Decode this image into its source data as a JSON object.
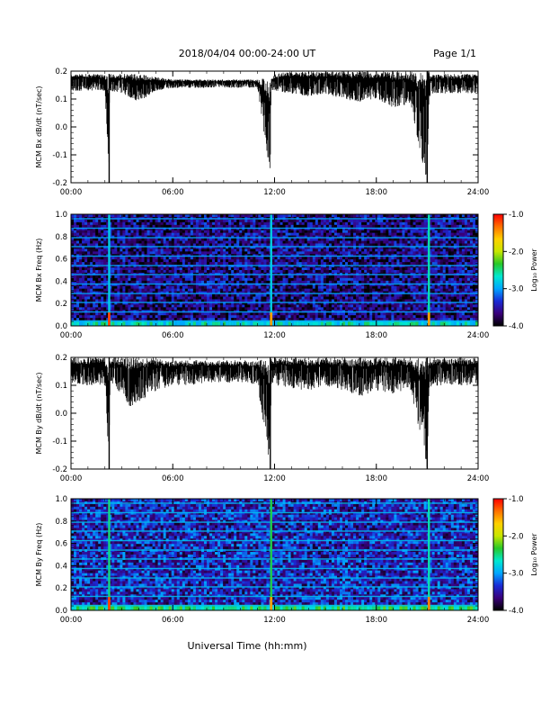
{
  "header": {
    "date_range": "2018/04/04  00:00-24:00 UT",
    "page": "Page 1/1"
  },
  "footer": {
    "xlabel": "Universal Time (hh:mm)"
  },
  "colors": {
    "trace": "#000000",
    "spectrogram_background": "#2a0f66",
    "colormap": [
      "#000000",
      "#3a007a",
      "#1a2bd6",
      "#00a6ff",
      "#00e8d0",
      "#28c828",
      "#c8e600",
      "#ffd000",
      "#ff7000",
      "#ff0000"
    ]
  },
  "chart_data": [
    {
      "type": "line",
      "ylabel": "MCM Bx dB/dt (nT/sec)",
      "x_ticks": [
        "00:00",
        "06:00",
        "12:00",
        "18:00",
        "24:00"
      ],
      "y_ticks": [
        "-0.2",
        "-0.1",
        "0.0",
        "0.1",
        "0.2"
      ],
      "xlim": [
        0,
        24
      ],
      "ylim": [
        -0.2,
        0.2
      ],
      "series": [
        {
          "x": [
            0,
            1,
            2,
            2.25,
            2.3,
            3,
            4,
            5,
            6,
            7,
            8,
            9,
            10,
            11,
            11.75,
            11.8,
            12,
            13,
            14,
            15,
            16,
            17,
            18,
            19,
            20,
            21,
            21.1,
            21.2,
            22,
            23,
            24
          ],
          "y_max": [
            0.19,
            0.19,
            0.19,
            0.19,
            0.19,
            0.19,
            0.19,
            0.18,
            0.17,
            0.17,
            0.17,
            0.17,
            0.17,
            0.17,
            0.18,
            0.18,
            0.19,
            0.2,
            0.2,
            0.2,
            0.2,
            0.2,
            0.2,
            0.2,
            0.2,
            0.2,
            0.2,
            0.19,
            0.19,
            0.19,
            0.19
          ],
          "y_min": [
            0.13,
            0.13,
            0.13,
            -0.2,
            0.13,
            0.12,
            0.09,
            0.13,
            0.14,
            0.14,
            0.14,
            0.14,
            0.14,
            0.14,
            -0.19,
            0.13,
            0.13,
            0.12,
            0.11,
            0.12,
            0.1,
            0.09,
            0.1,
            0.07,
            0.08,
            -0.2,
            0.08,
            0.12,
            0.12,
            0.12,
            0.12
          ]
        }
      ]
    },
    {
      "type": "heatmap",
      "ylabel": "MCM Bx Freq (Hz)",
      "x_ticks": [
        "00:00",
        "06:00",
        "12:00",
        "18:00",
        "24:00"
      ],
      "y_ticks": [
        "0.0",
        "0.2",
        "0.4",
        "0.6",
        "0.8",
        "1.0"
      ],
      "xlim": [
        0,
        24
      ],
      "ylim": [
        0,
        1
      ],
      "colorbar": {
        "label": "Log₁₀ Power",
        "ticks": [
          "-1.0",
          "-2.0",
          "-3.0",
          "-4.0"
        ],
        "range": [
          -4,
          -1
        ]
      },
      "background_log_power": -3.6,
      "harmonic_lines_hz": [
        0.042,
        0.125,
        0.21,
        0.29,
        0.375,
        0.46,
        0.54,
        0.625,
        0.71,
        0.79,
        0.875,
        0.96
      ],
      "harmonic_log_power": -3.0,
      "low_freq_band": {
        "max_hz": 0.05,
        "log_power": -2.7
      },
      "spikes": [
        {
          "time_h": 2.25,
          "log_power": -2.8,
          "peak_log_power": -1.2
        },
        {
          "time_h": 11.8,
          "log_power": -2.8,
          "peak_log_power": -1.5
        },
        {
          "time_h": 21.1,
          "log_power": -2.6,
          "peak_log_power": -1.5
        }
      ]
    },
    {
      "type": "line",
      "ylabel": "MCM By dB/dt (nT/sec)",
      "x_ticks": [
        "00:00",
        "06:00",
        "12:00",
        "18:00",
        "24:00"
      ],
      "y_ticks": [
        "-0.2",
        "-0.1",
        "0.0",
        "0.1",
        "0.2"
      ],
      "xlim": [
        0,
        24
      ],
      "ylim": [
        -0.2,
        0.2
      ],
      "series": [
        {
          "x": [
            0,
            1,
            2,
            2.25,
            2.3,
            3,
            3.5,
            4,
            5,
            6,
            7,
            8,
            9,
            10,
            11,
            11.75,
            11.8,
            12,
            13,
            14,
            15,
            16,
            17,
            18,
            19,
            20,
            21,
            21.1,
            21.2,
            22,
            23,
            24
          ],
          "y_max": [
            0.2,
            0.2,
            0.2,
            0.2,
            0.2,
            0.2,
            0.2,
            0.2,
            0.2,
            0.19,
            0.19,
            0.19,
            0.19,
            0.19,
            0.19,
            0.2,
            0.2,
            0.2,
            0.2,
            0.2,
            0.2,
            0.2,
            0.2,
            0.2,
            0.2,
            0.2,
            0.2,
            0.2,
            0.2,
            0.2,
            0.2,
            0.2
          ],
          "y_min": [
            0.11,
            0.1,
            0.1,
            -0.2,
            0.1,
            0.07,
            0.02,
            0.04,
            0.08,
            0.1,
            0.1,
            0.11,
            0.11,
            0.11,
            0.1,
            -0.2,
            0.1,
            0.1,
            0.09,
            0.08,
            0.1,
            0.08,
            0.06,
            0.08,
            0.07,
            0.09,
            -0.2,
            0.08,
            0.09,
            0.1,
            0.1,
            0.1
          ]
        }
      ]
    },
    {
      "type": "heatmap",
      "ylabel": "MCM By Freq (Hz)",
      "x_ticks": [
        "00:00",
        "06:00",
        "12:00",
        "18:00",
        "24:00"
      ],
      "y_ticks": [
        "0.0",
        "0.2",
        "0.4",
        "0.6",
        "0.8",
        "1.0"
      ],
      "xlim": [
        0,
        24
      ],
      "ylim": [
        0,
        1
      ],
      "colorbar": {
        "label": "Log₁₀ Power",
        "ticks": [
          "-1.0",
          "-2.0",
          "-3.0",
          "-4.0"
        ],
        "range": [
          -4,
          -1
        ]
      },
      "background_log_power": -3.4,
      "harmonic_lines_hz": [
        0.042,
        0.125,
        0.21,
        0.29,
        0.375,
        0.46,
        0.54,
        0.625,
        0.71,
        0.79,
        0.875,
        0.96
      ],
      "harmonic_log_power": -2.9,
      "low_freq_band": {
        "max_hz": 0.05,
        "log_power": -2.5
      },
      "spikes": [
        {
          "time_h": 2.25,
          "log_power": -2.5,
          "peak_log_power": -1.2
        },
        {
          "time_h": 11.8,
          "log_power": -2.4,
          "peak_log_power": -1.5
        },
        {
          "time_h": 21.1,
          "log_power": -2.6,
          "peak_log_power": -1.4
        }
      ]
    }
  ]
}
